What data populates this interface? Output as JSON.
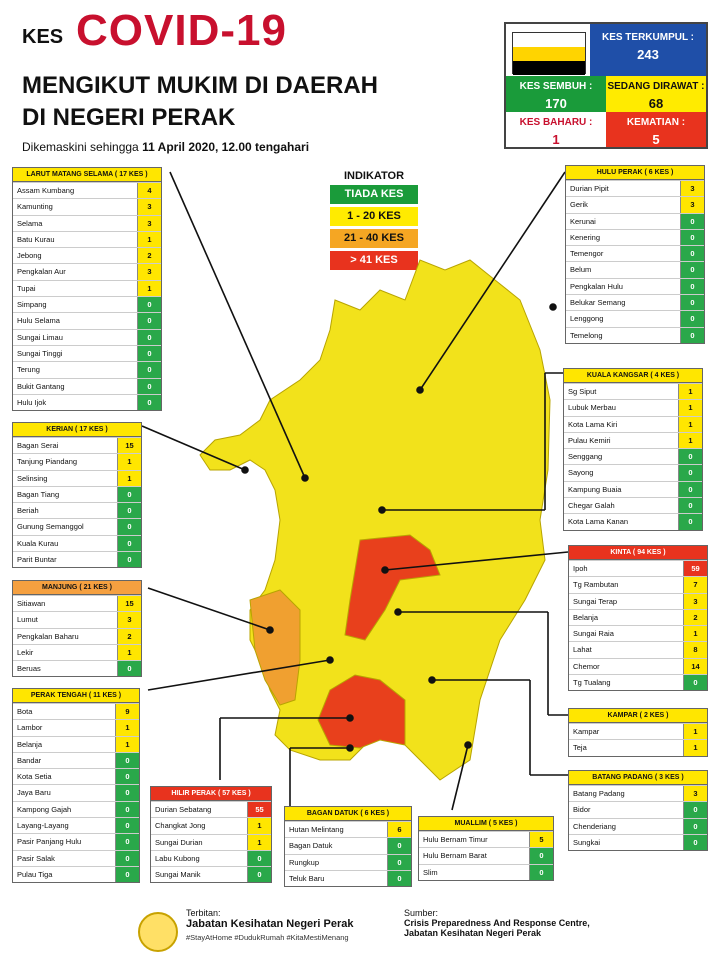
{
  "header": {
    "kes": "KES",
    "covid": "COVID-19",
    "title1": "MENGIKUT MUKIM DI DAERAH",
    "title2": "DI NEGERI PERAK",
    "updated_prefix": "Dikemaskini sehingga",
    "updated_date": "11 April 2020, 12.00 tengahari"
  },
  "stats": {
    "terkumpul_label": "KES TERKUMPUL :",
    "terkumpul": "243",
    "sembuh_label": "KES SEMBUH :",
    "sembuh": "170",
    "dirawat_label": "SEDANG DIRAWAT :",
    "dirawat": "68",
    "baharu_label": "KES BAHARU :",
    "baharu": "1",
    "kematian_label": "KEMATIAN :",
    "kematian": "5"
  },
  "indicator": {
    "title": "INDIKATOR",
    "items": [
      "TIADA KES",
      "1 - 20 KES",
      "21 - 40 KES",
      "> 41 KES"
    ],
    "colors": [
      "#1a9b3a",
      "#ffeb00",
      "#f5a623",
      "#e8331e"
    ]
  },
  "colors": {
    "zero": "#2aa84a",
    "low": "#ffe600",
    "mid": "#f5a040",
    "high": "#e8331e",
    "map_yellow": "#f2e21b",
    "map_orange": "#f0a030",
    "map_red": "#e8401c"
  },
  "panels": {
    "larut": {
      "title": "LARUT MATANG SELAMA ( 17 KES )",
      "rows": [
        [
          "Assam Kumbang",
          "4"
        ],
        [
          "Kamunting",
          "3"
        ],
        [
          "Selama",
          "3"
        ],
        [
          "Batu Kurau",
          "1"
        ],
        [
          "Jebong",
          "2"
        ],
        [
          "Pengkalan Aur",
          "3"
        ],
        [
          "Tupai",
          "1"
        ],
        [
          "Simpang",
          "0"
        ],
        [
          "Hulu Selama",
          "0"
        ],
        [
          "Sungai Limau",
          "0"
        ],
        [
          "Sungai Tinggi",
          "0"
        ],
        [
          "Terung",
          "0"
        ],
        [
          "Bukit Gantang",
          "0"
        ],
        [
          "Hulu Ijok",
          "0"
        ]
      ]
    },
    "kerian": {
      "title": "KERIAN ( 17 KES )",
      "rows": [
        [
          "Bagan Serai",
          "15"
        ],
        [
          "Tanjung Piandang",
          "1"
        ],
        [
          "Selinsing",
          "1"
        ],
        [
          "Bagan Tiang",
          "0"
        ],
        [
          "Beriah",
          "0"
        ],
        [
          "Gunung Semanggol",
          "0"
        ],
        [
          "Kuala Kurau",
          "0"
        ],
        [
          "Parit Buntar",
          "0"
        ]
      ]
    },
    "manjung": {
      "title": "MANJUNG ( 21 KES )",
      "rows": [
        [
          "Sitiawan",
          "15"
        ],
        [
          "Lumut",
          "3"
        ],
        [
          "Pengkalan Baharu",
          "2"
        ],
        [
          "Lekir",
          "1"
        ],
        [
          "Beruas",
          "0"
        ]
      ]
    },
    "perak_tengah": {
      "title": "PERAK TENGAH ( 11 KES )",
      "rows": [
        [
          "Bota",
          "9"
        ],
        [
          "Lambor",
          "1"
        ],
        [
          "Belanja",
          "1"
        ],
        [
          "Bandar",
          "0"
        ],
        [
          "Kota Setia",
          "0"
        ],
        [
          "Jaya Baru",
          "0"
        ],
        [
          "Kampong Gajah",
          "0"
        ],
        [
          "Layang-Layang",
          "0"
        ],
        [
          "Pasir Panjang Hulu",
          "0"
        ],
        [
          "Pasir Salak",
          "0"
        ],
        [
          "Pulau Tiga",
          "0"
        ]
      ]
    },
    "hilir": {
      "title": "HILIR PERAK ( 57 KES )",
      "rows": [
        [
          "Durian Sebatang",
          "55"
        ],
        [
          "Changkat Jong",
          "1"
        ],
        [
          "Sungai Durian",
          "1"
        ],
        [
          "Labu Kubong",
          "0"
        ],
        [
          "Sungai Manik",
          "0"
        ]
      ]
    },
    "bagan_datuk": {
      "title": "BAGAN DATUK ( 6 KES )",
      "rows": [
        [
          "Hutan Melintang",
          "6"
        ],
        [
          "Bagan Datuk",
          "0"
        ],
        [
          "Rungkup",
          "0"
        ],
        [
          "Teluk Baru",
          "0"
        ]
      ]
    },
    "muallim": {
      "title": "MUALLIM ( 5 KES )",
      "rows": [
        [
          "Hulu Bernam Timur",
          "5"
        ],
        [
          "Hulu Bernam Barat",
          "0"
        ],
        [
          "Slim",
          "0"
        ]
      ]
    },
    "hulu_perak": {
      "title": "HULU PERAK ( 6 KES )",
      "rows": [
        [
          "Durian Pipit",
          "3"
        ],
        [
          "Gerik",
          "3"
        ],
        [
          "Kerunai",
          "0"
        ],
        [
          "Kenering",
          "0"
        ],
        [
          "Temengor",
          "0"
        ],
        [
          "Belum",
          "0"
        ],
        [
          "Pengkalan Hulu",
          "0"
        ],
        [
          "Belukar Semang",
          "0"
        ],
        [
          "Lenggong",
          "0"
        ],
        [
          "Temelong",
          "0"
        ]
      ]
    },
    "kuala_kangsar": {
      "title": "KUALA KANGSAR ( 4 KES )",
      "rows": [
        [
          "Sg Siput",
          "1"
        ],
        [
          "Lubuk Merbau",
          "1"
        ],
        [
          "Kota Lama Kiri",
          "1"
        ],
        [
          "Pulau Kemiri",
          "1"
        ],
        [
          "Senggang",
          "0"
        ],
        [
          "Sayong",
          "0"
        ],
        [
          "Kampung Buaia",
          "0"
        ],
        [
          "Chegar Galah",
          "0"
        ],
        [
          "Kota Lama Kanan",
          "0"
        ]
      ]
    },
    "kinta": {
      "title": "KINTA ( 94 KES )",
      "rows": [
        [
          "Ipoh",
          "59"
        ],
        [
          "Tg Rambutan",
          "7"
        ],
        [
          "Sungai Terap",
          "3"
        ],
        [
          "Belanja",
          "2"
        ],
        [
          "Sungai Raia",
          "1"
        ],
        [
          "Lahat",
          "8"
        ],
        [
          "Chemor",
          "14"
        ],
        [
          "Tg Tualang",
          "0"
        ]
      ]
    },
    "kampar": {
      "title": "KAMPAR ( 2 KES )",
      "rows": [
        [
          "Kampar",
          "1"
        ],
        [
          "Teja",
          "1"
        ]
      ]
    },
    "batang_padang": {
      "title": "BATANG PADANG ( 3 KES )",
      "rows": [
        [
          "Batang Padang",
          "3"
        ],
        [
          "Bidor",
          "0"
        ],
        [
          "Chenderiang",
          "0"
        ],
        [
          "Sungkai",
          "0"
        ]
      ]
    }
  },
  "footer": {
    "terbitan": "Terbitan:",
    "org": "Jabatan Kesihatan Negeri Perak",
    "tags": "#StayAtHome #DudukRumah #KitaMestiMenang",
    "sumber": "Sumber:",
    "src1": "Crisis Preparedness And Response Centre,",
    "src2": "Jabatan Kesihatan Negeri Perak"
  }
}
